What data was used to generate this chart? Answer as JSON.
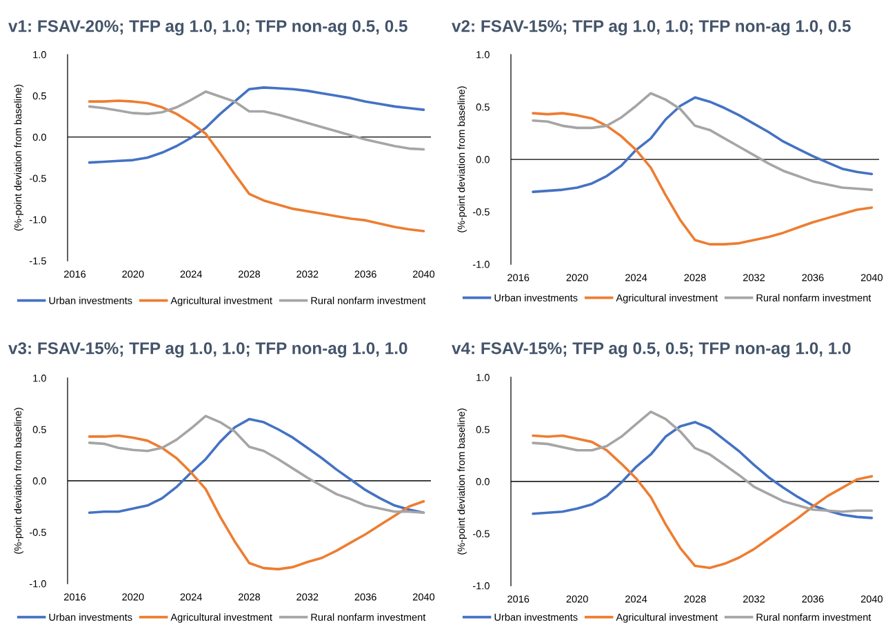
{
  "chart_data": [
    {
      "type": "line",
      "title": "v1: FSAV-20%; TFP ag 1.0, 1.0; TFP non-ag 0.5, 0.5",
      "ylabel": "(%-point deviation from baseline)",
      "x": [
        2017,
        2018,
        2019,
        2020,
        2021,
        2022,
        2023,
        2024,
        2025,
        2026,
        2027,
        2028,
        2029,
        2030,
        2031,
        2032,
        2033,
        2034,
        2035,
        2036,
        2037,
        2038,
        2039,
        2040
      ],
      "series": [
        {
          "name": "Urban investments",
          "color": "#4472c4",
          "values": [
            -0.31,
            -0.3,
            -0.29,
            -0.28,
            -0.25,
            -0.19,
            -0.11,
            -0.01,
            0.11,
            0.28,
            0.43,
            0.58,
            0.6,
            0.59,
            0.58,
            0.56,
            0.53,
            0.5,
            0.47,
            0.43,
            0.4,
            0.37,
            0.35,
            0.33
          ]
        },
        {
          "name": "Agricultural investment",
          "color": "#ed7d31",
          "values": [
            0.43,
            0.43,
            0.44,
            0.43,
            0.41,
            0.36,
            0.28,
            0.17,
            0.04,
            -0.2,
            -0.45,
            -0.69,
            -0.77,
            -0.82,
            -0.87,
            -0.9,
            -0.93,
            -0.96,
            -0.99,
            -1.01,
            -1.05,
            -1.09,
            -1.12,
            -1.14
          ]
        },
        {
          "name": "Rural nonfarm investment",
          "color": "#a5a5a5",
          "values": [
            0.37,
            0.35,
            0.32,
            0.29,
            0.28,
            0.3,
            0.36,
            0.45,
            0.55,
            0.49,
            0.43,
            0.31,
            0.31,
            0.27,
            0.22,
            0.17,
            0.12,
            0.07,
            0.02,
            -0.03,
            -0.07,
            -0.11,
            -0.14,
            -0.15
          ]
        }
      ],
      "xlim": [
        2015.5,
        2040.5
      ],
      "xticks": [
        2016,
        2020,
        2024,
        2028,
        2032,
        2036,
        2040
      ],
      "ylim": [
        -1.5,
        1.0
      ],
      "yticks": [
        -1.5,
        {
          "value": -1.0,
          "label": "-1.0"
        },
        -0.5,
        {
          "value": 0,
          "label": "0.0"
        },
        0.5,
        {
          "value": 1.0,
          "label": "1.0"
        }
      ],
      "ref_lines": [
        {
          "axis": "y",
          "value": 0,
          "color": "#000000"
        }
      ],
      "legend": "bottom",
      "grid": false,
      "marker": "none",
      "line_style": "solid"
    },
    {
      "type": "line",
      "title": "v2: FSAV-15%; TFP ag 1.0, 1.0; TFP non-ag 1.0, 0.5",
      "ylabel": "(%-point deviation from baseline)",
      "x": [
        2017,
        2018,
        2019,
        2020,
        2021,
        2022,
        2023,
        2024,
        2025,
        2026,
        2027,
        2028,
        2029,
        2030,
        2031,
        2032,
        2033,
        2034,
        2035,
        2036,
        2037,
        2038,
        2039,
        2040
      ],
      "series": [
        {
          "name": "Urban investments",
          "color": "#4472c4",
          "values": [
            -0.31,
            -0.3,
            -0.29,
            -0.27,
            -0.23,
            -0.16,
            -0.06,
            0.09,
            0.2,
            0.38,
            0.51,
            0.59,
            0.55,
            0.49,
            0.42,
            0.34,
            0.26,
            0.17,
            0.1,
            0.03,
            -0.03,
            -0.09,
            -0.12,
            -0.14
          ]
        },
        {
          "name": "Agricultural investment",
          "color": "#ed7d31",
          "values": [
            0.44,
            0.43,
            0.44,
            0.42,
            0.39,
            0.32,
            0.22,
            0.09,
            -0.08,
            -0.34,
            -0.58,
            -0.77,
            -0.81,
            -0.81,
            -0.8,
            -0.77,
            -0.74,
            -0.7,
            -0.65,
            -0.6,
            -0.56,
            -0.52,
            -0.48,
            -0.46
          ]
        },
        {
          "name": "Rural nonfarm investment",
          "color": "#a5a5a5",
          "values": [
            0.37,
            0.36,
            0.32,
            0.3,
            0.3,
            0.32,
            0.4,
            0.51,
            0.63,
            0.57,
            0.48,
            0.32,
            0.28,
            0.2,
            0.12,
            0.04,
            -0.04,
            -0.11,
            -0.16,
            -0.21,
            -0.24,
            -0.27,
            -0.28,
            -0.29
          ]
        }
      ],
      "xlim": [
        2015.5,
        2040.5
      ],
      "xticks": [
        2016,
        2020,
        2024,
        2028,
        2032,
        2036,
        2040
      ],
      "ylim": [
        -1.0,
        1.0
      ],
      "yticks": [
        {
          "value": -1.0,
          "label": "-1.0"
        },
        -0.5,
        {
          "value": 0,
          "label": "0.0"
        },
        0.5,
        {
          "value": 1.0,
          "label": "1.0"
        }
      ],
      "ref_lines": [
        {
          "axis": "y",
          "value": 0,
          "color": "#000000"
        }
      ],
      "legend": "bottom",
      "grid": false,
      "marker": "none",
      "line_style": "solid"
    },
    {
      "type": "line",
      "title": "v3: FSAV-15%; TFP ag 1.0, 1.0; TFP non-ag 1.0, 1.0",
      "ylabel": "(%-point deviation from baseline)",
      "x": [
        2017,
        2018,
        2019,
        2020,
        2021,
        2022,
        2023,
        2024,
        2025,
        2026,
        2027,
        2028,
        2029,
        2030,
        2031,
        2032,
        2033,
        2034,
        2035,
        2036,
        2037,
        2038,
        2039,
        2040
      ],
      "series": [
        {
          "name": "Urban investments",
          "color": "#4472c4",
          "values": [
            -0.31,
            -0.3,
            -0.3,
            -0.27,
            -0.24,
            -0.17,
            -0.06,
            0.08,
            0.21,
            0.38,
            0.52,
            0.6,
            0.57,
            0.5,
            0.42,
            0.32,
            0.22,
            0.11,
            0.01,
            -0.09,
            -0.17,
            -0.24,
            -0.28,
            -0.31
          ]
        },
        {
          "name": "Agricultural investment",
          "color": "#ed7d31",
          "values": [
            0.43,
            0.43,
            0.44,
            0.42,
            0.39,
            0.32,
            0.22,
            0.08,
            -0.08,
            -0.35,
            -0.59,
            -0.8,
            -0.85,
            -0.86,
            -0.84,
            -0.79,
            -0.75,
            -0.68,
            -0.6,
            -0.52,
            -0.43,
            -0.34,
            -0.25,
            -0.2
          ]
        },
        {
          "name": "Rural nonfarm investment",
          "color": "#a5a5a5",
          "values": [
            0.37,
            0.36,
            0.32,
            0.3,
            0.29,
            0.32,
            0.4,
            0.51,
            0.63,
            0.57,
            0.48,
            0.33,
            0.29,
            0.21,
            0.12,
            0.03,
            -0.05,
            -0.13,
            -0.18,
            -0.24,
            -0.27,
            -0.3,
            -0.3,
            -0.31
          ]
        }
      ],
      "xlim": [
        2015.5,
        2040.5
      ],
      "xticks": [
        2016,
        2020,
        2024,
        2028,
        2032,
        2036,
        2040
      ],
      "ylim": [
        -1.0,
        1.0
      ],
      "yticks": [
        {
          "value": -1.0,
          "label": "-1.0"
        },
        -0.5,
        {
          "value": 0,
          "label": "0.0"
        },
        0.5,
        {
          "value": 1.0,
          "label": "1.0"
        }
      ],
      "ref_lines": [
        {
          "axis": "y",
          "value": 0,
          "color": "#000000"
        }
      ],
      "legend": "bottom",
      "grid": false,
      "marker": "none",
      "line_style": "solid"
    },
    {
      "type": "line",
      "title": "v4: FSAV-15%; TFP ag 0.5, 0.5; TFP non-ag 1.0, 1.0",
      "ylabel": "(%-point deviation from baseline)",
      "x": [
        2017,
        2018,
        2019,
        2020,
        2021,
        2022,
        2023,
        2024,
        2025,
        2026,
        2027,
        2028,
        2029,
        2030,
        2031,
        2032,
        2033,
        2034,
        2035,
        2036,
        2037,
        2038,
        2039,
        2040
      ],
      "series": [
        {
          "name": "Urban investments",
          "color": "#4472c4",
          "values": [
            -0.31,
            -0.3,
            -0.29,
            -0.26,
            -0.22,
            -0.14,
            -0.01,
            0.14,
            0.26,
            0.43,
            0.53,
            0.57,
            0.51,
            0.4,
            0.29,
            0.16,
            0.04,
            -0.06,
            -0.15,
            -0.23,
            -0.28,
            -0.32,
            -0.34,
            -0.35
          ]
        },
        {
          "name": "Agricultural investment",
          "color": "#ed7d31",
          "values": [
            0.44,
            0.43,
            0.44,
            0.41,
            0.38,
            0.3,
            0.17,
            0.03,
            -0.15,
            -0.41,
            -0.64,
            -0.81,
            -0.83,
            -0.79,
            -0.73,
            -0.65,
            -0.55,
            -0.45,
            -0.35,
            -0.24,
            -0.14,
            -0.06,
            0.02,
            0.05
          ]
        },
        {
          "name": "Rural nonfarm investment",
          "color": "#a5a5a5",
          "values": [
            0.37,
            0.36,
            0.33,
            0.3,
            0.3,
            0.34,
            0.43,
            0.55,
            0.67,
            0.6,
            0.48,
            0.32,
            0.26,
            0.16,
            0.06,
            -0.05,
            -0.12,
            -0.19,
            -0.23,
            -0.27,
            -0.28,
            -0.29,
            -0.28,
            -0.28
          ]
        }
      ],
      "xlim": [
        2015.5,
        2040.5
      ],
      "xticks": [
        2016,
        2020,
        2024,
        2028,
        2032,
        2036,
        2040
      ],
      "ylim": [
        -1.0,
        1.0
      ],
      "yticks": [
        {
          "value": -1.0,
          "label": "-1.0"
        },
        -0.5,
        {
          "value": 0,
          "label": "0.0"
        },
        0.5,
        {
          "value": 1.0,
          "label": "1.0"
        }
      ],
      "ref_lines": [
        {
          "axis": "y",
          "value": 0,
          "color": "#000000"
        }
      ],
      "legend": "bottom",
      "grid": false,
      "marker": "none",
      "line_style": "solid"
    }
  ]
}
